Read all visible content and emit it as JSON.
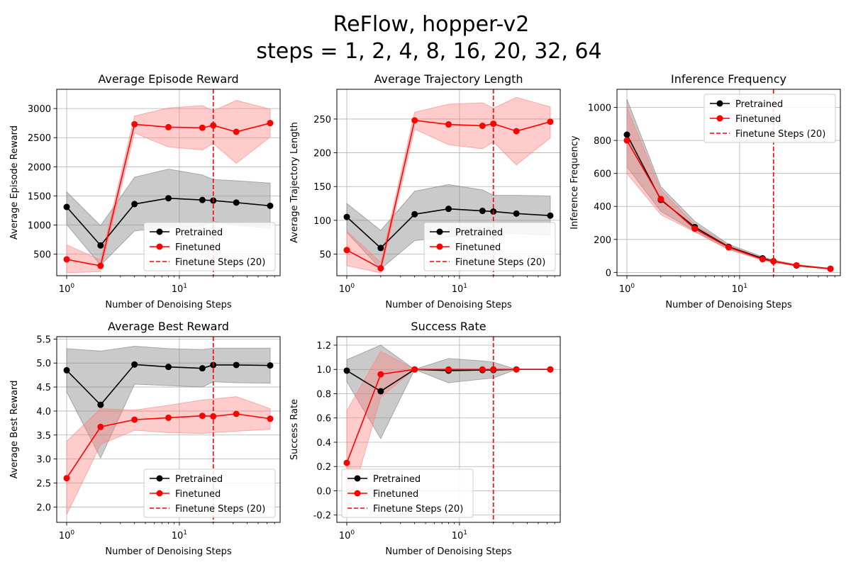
{
  "figure": {
    "title_line1": "ReFlow, hopper-v2",
    "title_line2": "steps = 1, 2, 4, 8, 16, 20, 32, 64"
  },
  "colors": {
    "pretrained": "#000000",
    "finetuned": "#ff0000",
    "pretrained_band": "#808080",
    "finetuned_band": "#ff8080",
    "grid": "#b0b0b0"
  },
  "chart_data": [
    {
      "type": "line",
      "title": "Average Episode Reward",
      "xlabel": "Number of Denoising Steps",
      "ylabel": "Average Episode Reward",
      "xscale": "log",
      "x": [
        1,
        2,
        4,
        8,
        16,
        20,
        32,
        64
      ],
      "ylim": [
        130,
        3330
      ],
      "yticks": [
        500,
        1000,
        1500,
        2000,
        2500,
        3000
      ],
      "grid": true,
      "legend_position": "lower-right",
      "vline": {
        "x": 20,
        "label": "Finetune Steps (20)"
      },
      "series": [
        {
          "name": "Pretrained",
          "values": [
            1310,
            650,
            1360,
            1460,
            1430,
            1420,
            1385,
            1330
          ],
          "lower": [
            1010,
            310,
            900,
            960,
            980,
            1060,
            1000,
            940
          ],
          "upper": [
            1570,
            990,
            1820,
            1960,
            1860,
            1780,
            1760,
            1720
          ]
        },
        {
          "name": "Finetuned",
          "values": [
            410,
            300,
            2730,
            2680,
            2670,
            2710,
            2600,
            2750
          ],
          "lower": [
            180,
            200,
            2580,
            2340,
            2290,
            2400,
            2060,
            2510
          ],
          "upper": [
            660,
            400,
            2870,
            3010,
            3050,
            2960,
            3140,
            2990
          ]
        }
      ]
    },
    {
      "type": "line",
      "title": "Average Trajectory Length",
      "xlabel": "Number of Denoising Steps",
      "ylabel": "Average Trajectory Length",
      "xscale": "log",
      "x": [
        1,
        2,
        4,
        8,
        16,
        20,
        32,
        64
      ],
      "ylim": [
        18,
        294
      ],
      "yticks": [
        50,
        100,
        150,
        200,
        250
      ],
      "grid": true,
      "legend_position": "lower-right",
      "vline": {
        "x": 20,
        "label": "Finetune Steps (20)"
      },
      "series": [
        {
          "name": "Pretrained",
          "values": [
            105,
            59,
            109,
            117,
            114,
            113,
            110,
            107
          ],
          "lower": [
            82,
            28,
            70,
            75,
            80,
            82,
            80,
            78
          ],
          "upper": [
            125,
            85,
            143,
            153,
            145,
            137,
            137,
            136
          ]
        },
        {
          "name": "Finetuned",
          "values": [
            56,
            29,
            248,
            242,
            240,
            243,
            232,
            246
          ],
          "lower": [
            33,
            22,
            235,
            212,
            206,
            216,
            182,
            222
          ],
          "upper": [
            84,
            38,
            260,
            272,
            274,
            266,
            282,
            268
          ]
        }
      ]
    },
    {
      "type": "line",
      "title": "Inference Frequency",
      "xlabel": "Number of Denoising Steps",
      "ylabel": "Inference Frequency",
      "xscale": "log",
      "x": [
        1,
        2,
        4,
        8,
        16,
        20,
        32,
        64
      ],
      "ylim": [
        -20,
        1110
      ],
      "yticks": [
        0,
        200,
        400,
        600,
        800,
        1000
      ],
      "grid": true,
      "legend_position": "upper-right",
      "vline": {
        "x": 20,
        "label": "Finetune Steps (20)"
      },
      "series": [
        {
          "name": "Pretrained",
          "values": [
            835,
            440,
            275,
            155,
            85,
            68,
            42,
            22
          ],
          "lower": [
            640,
            370,
            250,
            140,
            78,
            62,
            38,
            20
          ],
          "upper": [
            1050,
            520,
            310,
            170,
            95,
            75,
            47,
            25
          ]
        },
        {
          "name": "Finetuned",
          "values": [
            800,
            445,
            265,
            152,
            80,
            67,
            43,
            22
          ],
          "lower": [
            600,
            350,
            245,
            138,
            73,
            60,
            38,
            20
          ],
          "upper": [
            1000,
            500,
            290,
            165,
            88,
            73,
            47,
            24
          ]
        }
      ]
    },
    {
      "type": "line",
      "title": "Average Best Reward",
      "xlabel": "Number of Denoising Steps",
      "ylabel": "Average Best Reward",
      "xscale": "log",
      "x": [
        1,
        2,
        4,
        8,
        16,
        20,
        32,
        64
      ],
      "ylim": [
        1.68,
        5.55
      ],
      "yticks": [
        2.0,
        2.5,
        3.0,
        3.5,
        4.0,
        4.5,
        5.0,
        5.5
      ],
      "grid": true,
      "legend_position": "lower-right",
      "vline": {
        "x": 20,
        "label": "Finetune Steps (20)"
      },
      "series": [
        {
          "name": "Pretrained",
          "values": [
            4.85,
            4.13,
            4.97,
            4.92,
            4.89,
            4.96,
            4.96,
            4.95
          ],
          "lower": [
            4.4,
            3.02,
            4.56,
            4.53,
            4.5,
            4.61,
            4.59,
            4.58
          ],
          "upper": [
            5.3,
            5.25,
            5.35,
            5.3,
            5.28,
            5.31,
            5.31,
            5.31
          ]
        },
        {
          "name": "Finetuned",
          "values": [
            2.6,
            3.67,
            3.82,
            3.86,
            3.9,
            3.89,
            3.94,
            3.84
          ],
          "lower": [
            1.84,
            3.3,
            3.6,
            3.55,
            3.53,
            3.55,
            3.58,
            3.62
          ],
          "upper": [
            3.37,
            4.05,
            4.02,
            4.12,
            4.23,
            4.25,
            4.3,
            4.05
          ]
        }
      ]
    },
    {
      "type": "line",
      "title": "Success Rate",
      "xlabel": "Number of Denoising Steps",
      "ylabel": "Success Rate",
      "xscale": "log",
      "x": [
        1,
        2,
        4,
        8,
        16,
        20,
        32,
        64
      ],
      "ylim": [
        -0.26,
        1.27
      ],
      "yticks": [
        -0.2,
        0.0,
        0.2,
        0.4,
        0.6,
        0.8,
        1.0,
        1.2
      ],
      "grid": true,
      "legend_position": "lower-left",
      "vline": {
        "x": 20,
        "label": "Finetune Steps (20)"
      },
      "series": [
        {
          "name": "Pretrained",
          "values": [
            0.99,
            0.82,
            1.0,
            0.99,
            0.995,
            0.995,
            1.0,
            1.0
          ],
          "lower": [
            0.9,
            0.43,
            1.0,
            0.89,
            0.92,
            0.93,
            1.0,
            1.0
          ],
          "upper": [
            1.08,
            1.2,
            1.0,
            1.09,
            1.07,
            1.06,
            1.0,
            1.0
          ]
        },
        {
          "name": "Finetuned",
          "values": [
            0.23,
            0.96,
            1.0,
            1.0,
            1.0,
            1.0,
            1.0,
            1.0
          ],
          "lower": [
            -0.2,
            0.77,
            1.0,
            1.0,
            1.0,
            1.0,
            1.0,
            1.0
          ],
          "upper": [
            0.66,
            1.15,
            1.0,
            1.0,
            1.0,
            1.0,
            1.0,
            1.0
          ]
        }
      ]
    }
  ]
}
